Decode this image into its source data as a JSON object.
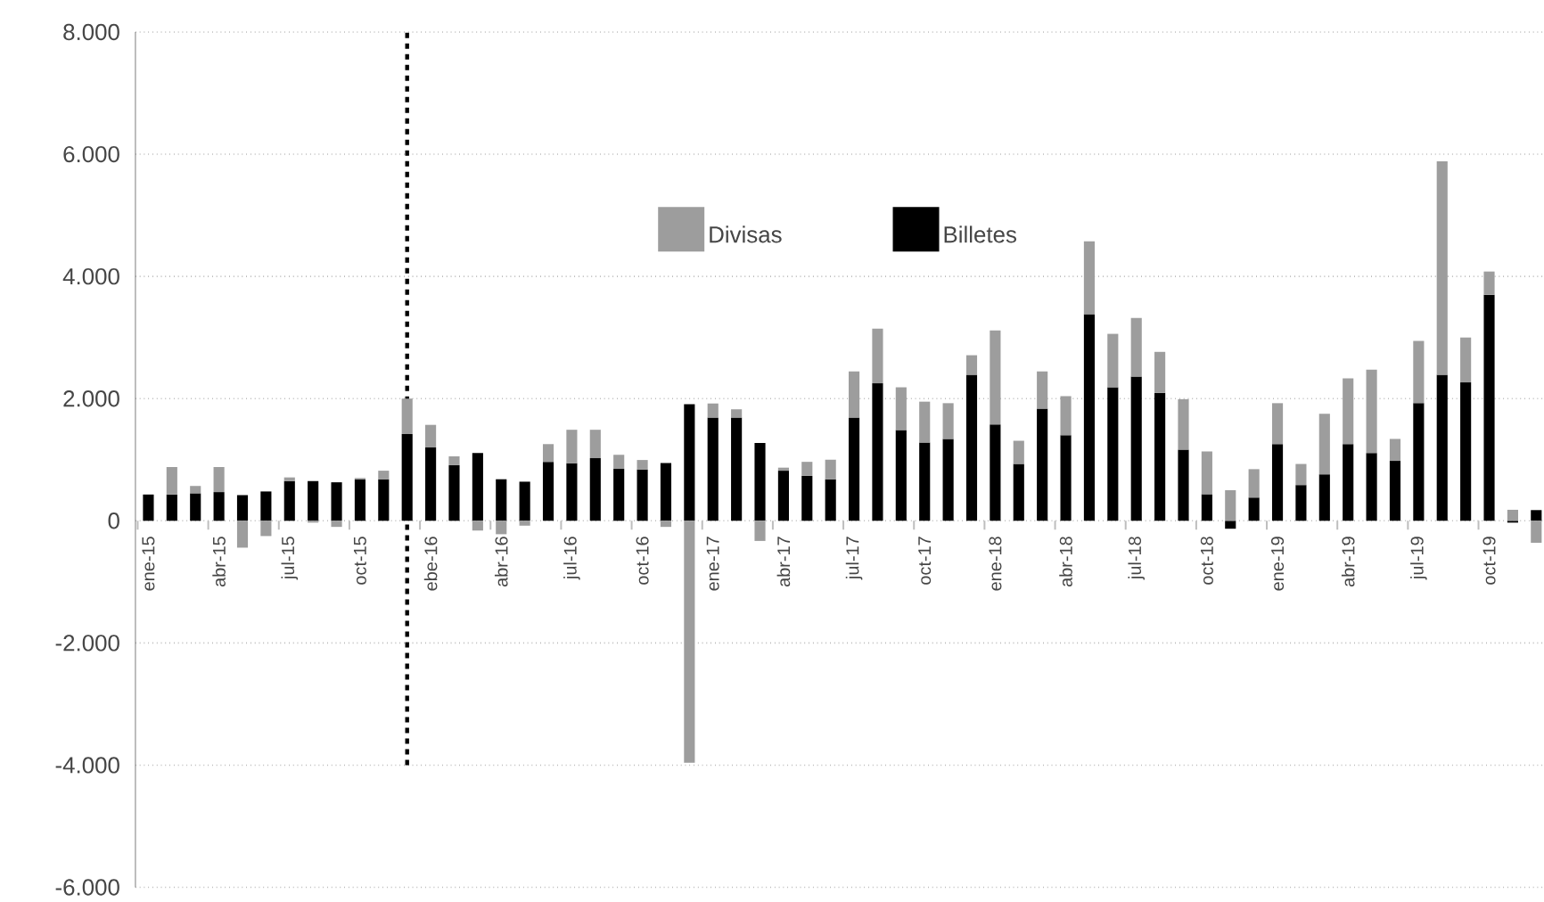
{
  "chart_data": {
    "type": "bar",
    "stacked": true,
    "categories": [
      "ene-15",
      null,
      null,
      "abr-15",
      null,
      null,
      "jul-15",
      null,
      null,
      "oct-15",
      null,
      null,
      "ebe-16",
      null,
      null,
      "abr-16",
      null,
      null,
      "jul-16",
      null,
      null,
      "oct-16",
      null,
      null,
      "ene-17",
      null,
      null,
      "abr-17",
      null,
      null,
      "jul-17",
      null,
      null,
      "oct-17",
      null,
      null,
      "ene-18",
      null,
      null,
      "abr-18",
      null,
      null,
      "jul-18",
      null,
      null,
      "oct-18",
      null,
      null,
      "ene-19",
      null,
      null,
      "abr-19",
      null,
      null,
      "jul-19",
      null,
      null,
      "oct-19",
      null,
      null
    ],
    "series": [
      {
        "name": "Billetes",
        "color": "#000000",
        "values": [
          430,
          430,
          450,
          470,
          420,
          480,
          650,
          650,
          630,
          680,
          680,
          1420,
          1200,
          910,
          1110,
          680,
          640,
          965,
          940,
          1025,
          850,
          840,
          945,
          1910,
          1690,
          1690,
          1275,
          820,
          735,
          680,
          1690,
          2250,
          1485,
          1280,
          1340,
          2390,
          1575,
          930,
          1835,
          1400,
          3380,
          2185,
          2360,
          2095,
          1165,
          435,
          -130,
          380,
          1255,
          585,
          760,
          1255,
          1110,
          980,
          1925,
          2390,
          2265,
          3700,
          -30,
          175
        ]
      },
      {
        "name": "Divisas",
        "color": "#9d9d9d",
        "values": [
          0,
          450,
          120,
          410,
          -440,
          -250,
          60,
          -30,
          -100,
          20,
          140,
          580,
          370,
          145,
          -160,
          -220,
          -80,
          290,
          550,
          465,
          230,
          155,
          -100,
          -3960,
          230,
          135,
          -330,
          50,
          230,
          320,
          755,
          895,
          700,
          670,
          585,
          320,
          1540,
          380,
          610,
          640,
          1195,
          875,
          960,
          670,
          825,
          700,
          500,
          465,
          670,
          345,
          990,
          1075,
          1365,
          360,
          1020,
          3495,
          735,
          380,
          180,
          -360
        ]
      }
    ],
    "ylim": [
      -6000,
      8000
    ],
    "yticks": [
      {
        "value": -6000,
        "label": "-6.000"
      },
      {
        "value": -4000,
        "label": "-4.000"
      },
      {
        "value": -2000,
        "label": "-2.000"
      },
      0,
      {
        "value": 2000,
        "label": "2.000"
      },
      {
        "value": 4000,
        "label": "4.000"
      },
      {
        "value": 6000,
        "label": "6.000"
      },
      {
        "value": 8000,
        "label": "8.000"
      }
    ],
    "grid": "y",
    "legend": "top"
  }
}
